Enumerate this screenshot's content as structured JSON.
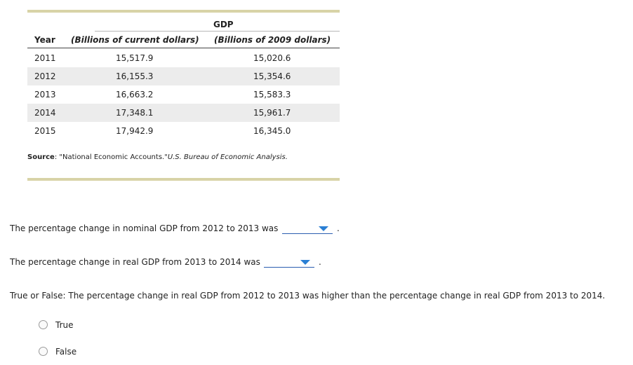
{
  "table": {
    "title": "GDP",
    "headers": {
      "year": "Year",
      "nominal": "(Billions of current dollars)",
      "real": "(Billions of 2009 dollars)"
    },
    "rows": [
      {
        "year": "2011",
        "nominal": "15,517.9",
        "real": "15,020.6"
      },
      {
        "year": "2012",
        "nominal": "16,155.3",
        "real": "15,354.6"
      },
      {
        "year": "2013",
        "nominal": "16,663.2",
        "real": "15,583.3"
      },
      {
        "year": "2014",
        "nominal": "17,348.1",
        "real": "15,961.7"
      },
      {
        "year": "2015",
        "nominal": "17,942.9",
        "real": "16,345.0"
      }
    ]
  },
  "source": {
    "label": "Source",
    "sep": ": ",
    "text": "\"National Economic Accounts.\"",
    "publisher": "U.S. Bureau of Economic Analysis."
  },
  "questions": {
    "q1": "The percentage change in nominal GDP from 2012 to 2013 was",
    "q2": "The percentage change in real GDP from 2013 to 2014 was",
    "q3": "True or False: The percentage change in real GDP from 2012 to 2013 was higher than the percentage change in real GDP from 2013 to 2014.",
    "period": "."
  },
  "options": {
    "true_label": "True",
    "false_label": "False"
  },
  "colors": {
    "rule": "#d8d3a7",
    "dropdown_accent": "#2a7fd4"
  }
}
